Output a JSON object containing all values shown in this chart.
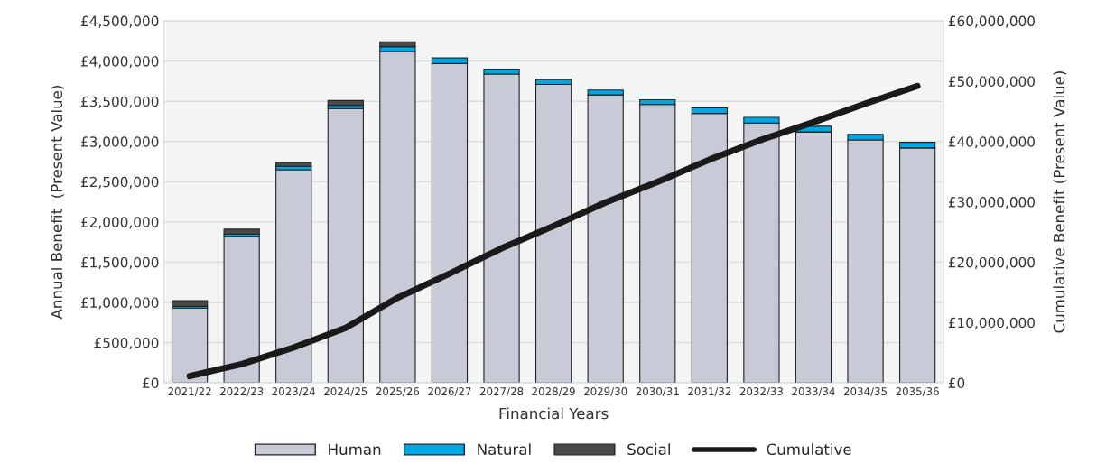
{
  "chart_data": {
    "type": "bar",
    "stacked": true,
    "xlabel": "Financial Years",
    "ylabel": "Annual Benefit  (Present Value)",
    "y2label": "Cumulative Benefit (Present Value)",
    "categories": [
      "2021/22",
      "2022/23",
      "2023/24",
      "2024/25",
      "2025/26",
      "2026/27",
      "2027/28",
      "2028/29",
      "2029/30",
      "2030/31",
      "2031/32",
      "2032/33",
      "2033/34",
      "2034/35",
      "2035/36"
    ],
    "series": [
      {
        "name": "Human",
        "color": "#c9cad8",
        "values": [
          930000,
          1820000,
          2650000,
          3410000,
          4120000,
          3970000,
          3840000,
          3710000,
          3580000,
          3460000,
          3350000,
          3230000,
          3120000,
          3020000,
          2920000
        ]
      },
      {
        "name": "Natural",
        "color": "#00a8e8",
        "values": [
          20000,
          30000,
          40000,
          40000,
          60000,
          70000,
          60000,
          60000,
          60000,
          60000,
          70000,
          70000,
          70000,
          70000,
          70000
        ]
      },
      {
        "name": "Social",
        "color": "#4a4a4a",
        "values": [
          70000,
          60000,
          50000,
          60000,
          60000,
          null,
          null,
          null,
          null,
          null,
          null,
          null,
          null,
          null,
          null
        ]
      },
      {
        "name": "Cumulative",
        "type": "line",
        "axis": "y2",
        "color": "#1a1a1a",
        "values": [
          1100000,
          3100000,
          5840000,
          9100000,
          14100000,
          18100000,
          22300000,
          26000000,
          29900000,
          33300000,
          37000000,
          40300000,
          43200000,
          46300000,
          49200000
        ]
      }
    ],
    "ylim": [
      0,
      4500000
    ],
    "yticks": [
      {
        "value": 0,
        "label": "£0"
      },
      {
        "value": 500000,
        "label": "£500,000"
      },
      {
        "value": 1000000,
        "label": "£1,000,000"
      },
      {
        "value": 1500000,
        "label": "£1,500,000"
      },
      {
        "value": 2000000,
        "label": "£2,000,000"
      },
      {
        "value": 2500000,
        "label": "£2,500,000"
      },
      {
        "value": 3000000,
        "label": "£3,000,000"
      },
      {
        "value": 3500000,
        "label": "£3,500,000"
      },
      {
        "value": 4000000,
        "label": "£4,000,000"
      },
      {
        "value": 4500000,
        "label": "£4,500,000"
      }
    ],
    "y2lim": [
      0,
      60000000
    ],
    "y2ticks": [
      {
        "value": 0,
        "label": "£0"
      },
      {
        "value": 10000000,
        "label": "£10,000,000"
      },
      {
        "value": 20000000,
        "label": "£20,000,000"
      },
      {
        "value": 30000000,
        "label": "£30,000,000"
      },
      {
        "value": 40000000,
        "label": "£40,000,000"
      },
      {
        "value": 50000000,
        "label": "£50,000,000"
      },
      {
        "value": 60000000,
        "label": "£60,000,000"
      }
    ],
    "grid": "y",
    "legend": "bottom"
  }
}
